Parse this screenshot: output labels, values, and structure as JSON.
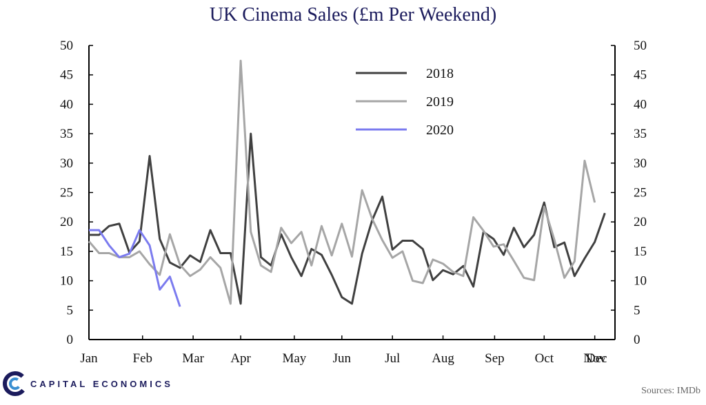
{
  "chart_data": {
    "type": "line",
    "title": "UK Cinema Sales (£m Per Weekend)",
    "xlabel": "",
    "ylabel": "",
    "ylim": [
      0,
      50
    ],
    "yticks": [
      0,
      5,
      10,
      15,
      20,
      25,
      30,
      35,
      40,
      45,
      50
    ],
    "xlim": [
      0,
      52
    ],
    "month_labels": [
      "Jan",
      "Feb",
      "Mar",
      "Apr",
      "May",
      "Jun",
      "Jul",
      "Aug",
      "Sep",
      "Oct",
      "Nov",
      "Dec"
    ],
    "month_positions": [
      0,
      5.3,
      10.3,
      15,
      20.3,
      25,
      30,
      35,
      40.1,
      45,
      50,
      55
    ],
    "legend_position": "top-center",
    "grid": false,
    "secondary_axis": true,
    "series": [
      {
        "name": "2018",
        "color": "#404040",
        "values": [
          17.8,
          17.8,
          19.3,
          19.7,
          14.8,
          16.7,
          31.2,
          17.1,
          13.1,
          12.2,
          14.3,
          13.2,
          18.6,
          14.7,
          14.7,
          6.1,
          35.0,
          14.0,
          12.6,
          17.9,
          14.0,
          10.8,
          15.4,
          14.4,
          11.0,
          7.2,
          6.1,
          14.6,
          20.3,
          24.3,
          15.3,
          16.8,
          16.8,
          15.4,
          10.1,
          11.8,
          11.1,
          12.5,
          9.0,
          18.3,
          17.1,
          14.4,
          19.0,
          15.7,
          17.8,
          23.3,
          15.7,
          16.5,
          10.8,
          13.8,
          16.6,
          21.5
        ]
      },
      {
        "name": "2019",
        "color": "#a6a6a6",
        "values": [
          16.7,
          14.7,
          14.7,
          14.0,
          14.0,
          15.0,
          12.8,
          11.0,
          17.9,
          12.7,
          10.8,
          11.9,
          14.0,
          12.2,
          6.1,
          47.4,
          18.3,
          12.6,
          11.5,
          19.0,
          16.4,
          18.3,
          12.6,
          19.3,
          14.3,
          19.7,
          14.1,
          25.4,
          20.5,
          16.9,
          13.9,
          15.0,
          10.0,
          9.6,
          13.6,
          12.9,
          11.5,
          10.8,
          20.8,
          18.5,
          15.8,
          16.2,
          13.4,
          10.5,
          10.1,
          22.6,
          17.0,
          10.5,
          13.3,
          30.4,
          23.3
        ]
      },
      {
        "name": "2020",
        "color": "#7b7bef",
        "values": [
          18.6,
          18.6,
          16.0,
          14.0,
          14.6,
          18.6,
          16.0,
          8.5,
          10.7,
          5.6
        ]
      }
    ]
  },
  "branding": {
    "company": "CAPITAL ECONOMICS",
    "source": "Sources: IMDb"
  }
}
